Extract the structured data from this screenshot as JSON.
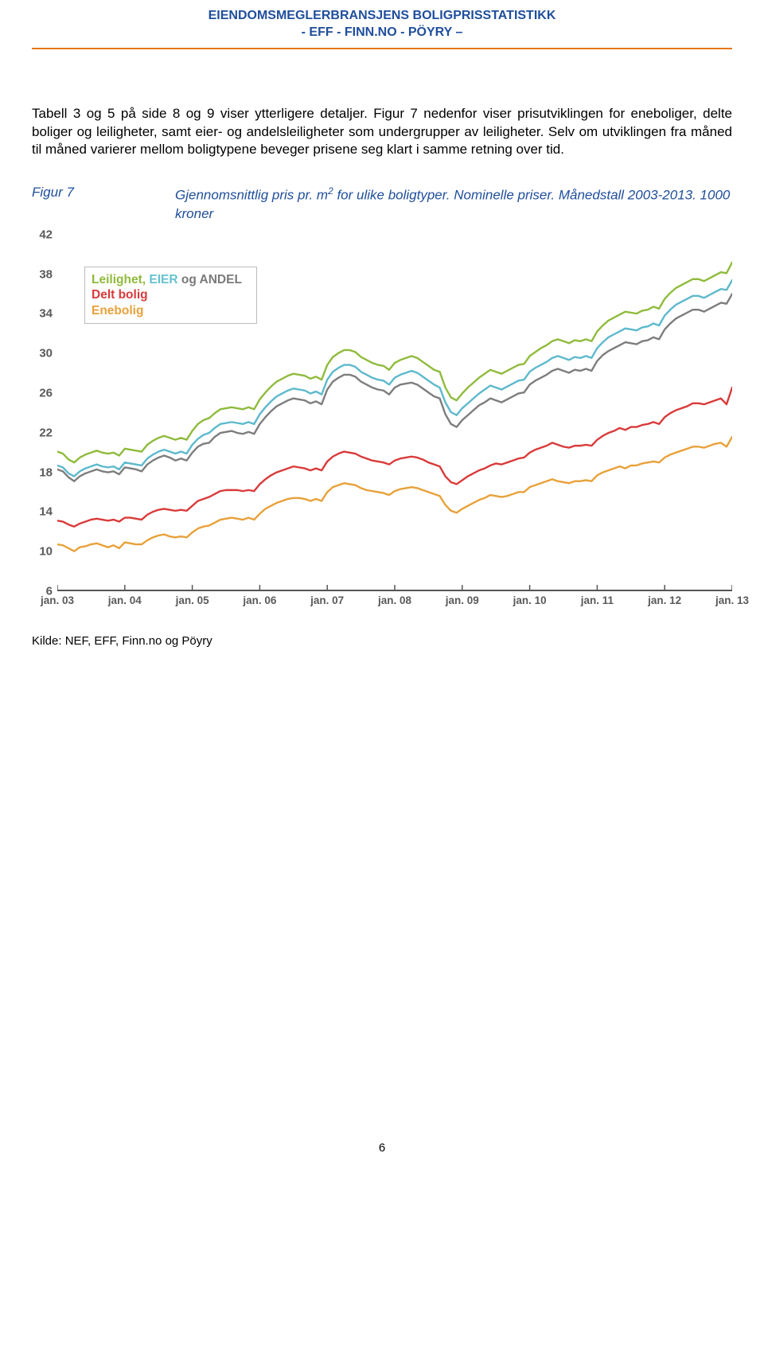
{
  "header": {
    "line1": "EIENDOMSMEGLERBRANSJENS BOLIGPRISSTATISTIKK",
    "line2": "- EFF - FINN.NO - PÖYRY –"
  },
  "paragraph": "Tabell 3 og 5 på side 8 og 9 viser ytterligere detaljer. Figur 7 nedenfor viser prisutviklingen for eneboliger, delte boliger og leiligheter, samt eier- og andelsleiligheter som undergrupper av leiligheter. Selv om utviklingen fra måned til måned varierer mellom boligtypene beveger prisene seg klart i samme retning over tid.",
  "figure": {
    "label": "Figur 7",
    "caption_before_sup": "Gjennomsnittlig pris pr. m",
    "caption_sup": "2",
    "caption_after_sup": " for ulike boligtyper. Nominelle priser. Månedstall 2003-2013. 1000 kroner"
  },
  "legend": {
    "leilighet": "Leilighet,",
    "eier": "EIER",
    "og": "og",
    "andel": "ANDEL",
    "delt": "Delt bolig",
    "enebolig": "Enebolig"
  },
  "chart": {
    "type": "line",
    "ylim": [
      6,
      42
    ],
    "ytick_step": 4,
    "x_categories": [
      "jan. 03",
      "jan. 04",
      "jan. 05",
      "jan. 06",
      "jan. 07",
      "jan. 08",
      "jan. 09",
      "jan. 10",
      "jan. 11",
      "jan. 12",
      "jan. 13"
    ],
    "background_color": "#ffffff",
    "line_width": 2.4,
    "series": {
      "andel": {
        "color": "#7d7d7d",
        "values": [
          18.2,
          18.0,
          17.4,
          17.0,
          17.5,
          17.8,
          18.0,
          18.2,
          18.0,
          17.9,
          18.0,
          17.7,
          18.4,
          18.3,
          18.2,
          18.0,
          18.7,
          19.1,
          19.4,
          19.6,
          19.4,
          19.1,
          19.3,
          19.1,
          19.9,
          20.5,
          20.8,
          20.9,
          21.5,
          21.9,
          22.0,
          22.1,
          21.9,
          21.8,
          22.0,
          21.8,
          22.8,
          23.5,
          24.1,
          24.6,
          24.9,
          25.2,
          25.4,
          25.3,
          25.2,
          24.9,
          25.1,
          24.8,
          26.3,
          27.1,
          27.5,
          27.8,
          27.8,
          27.6,
          27.1,
          26.8,
          26.5,
          26.3,
          26.2,
          25.8,
          26.5,
          26.8,
          26.9,
          27.0,
          26.8,
          26.4,
          26.0,
          25.6,
          25.4,
          23.8,
          22.8,
          22.5,
          23.2,
          23.7,
          24.2,
          24.7,
          25.0,
          25.4,
          25.2,
          25.0,
          25.3,
          25.6,
          25.9,
          26.0,
          26.8,
          27.2,
          27.5,
          27.8,
          28.2,
          28.4,
          28.2,
          28.0,
          28.3,
          28.2,
          28.4,
          28.2,
          29.2,
          29.8,
          30.2,
          30.5,
          30.8,
          31.1,
          31.0,
          30.9,
          31.2,
          31.3,
          31.6,
          31.4,
          32.4,
          33.0,
          33.5,
          33.8,
          34.1,
          34.4,
          34.4,
          34.2,
          34.5,
          34.8,
          35.1,
          35.0,
          36.0
        ]
      },
      "eier": {
        "color": "#5db9cc",
        "values": [
          18.6,
          18.4,
          17.8,
          17.5,
          18.0,
          18.3,
          18.5,
          18.7,
          18.5,
          18.4,
          18.5,
          18.2,
          18.9,
          18.8,
          18.7,
          18.6,
          19.3,
          19.7,
          20.0,
          20.2,
          20.0,
          19.8,
          20.0,
          19.8,
          20.7,
          21.3,
          21.7,
          21.9,
          22.4,
          22.8,
          22.9,
          23.0,
          22.9,
          22.8,
          23.0,
          22.8,
          23.8,
          24.5,
          25.1,
          25.6,
          25.9,
          26.2,
          26.4,
          26.3,
          26.2,
          25.9,
          26.1,
          25.8,
          27.3,
          28.1,
          28.5,
          28.8,
          28.8,
          28.6,
          28.1,
          27.8,
          27.5,
          27.3,
          27.2,
          26.8,
          27.5,
          27.8,
          28.0,
          28.2,
          28.0,
          27.6,
          27.2,
          26.8,
          26.5,
          25.0,
          24.0,
          23.7,
          24.4,
          24.9,
          25.4,
          25.9,
          26.3,
          26.7,
          26.5,
          26.3,
          26.6,
          26.9,
          27.2,
          27.3,
          28.1,
          28.5,
          28.8,
          29.1,
          29.5,
          29.7,
          29.5,
          29.3,
          29.6,
          29.5,
          29.7,
          29.5,
          30.5,
          31.1,
          31.6,
          31.9,
          32.2,
          32.5,
          32.4,
          32.3,
          32.6,
          32.7,
          33.0,
          32.8,
          33.8,
          34.4,
          34.9,
          35.2,
          35.5,
          35.8,
          35.8,
          35.6,
          35.9,
          36.2,
          36.5,
          36.4,
          37.4
        ]
      },
      "leilighet": {
        "color": "#8fbb3c",
        "values": [
          20.0,
          19.8,
          19.2,
          18.9,
          19.4,
          19.7,
          19.9,
          20.1,
          19.9,
          19.8,
          19.9,
          19.6,
          20.3,
          20.2,
          20.1,
          20.0,
          20.7,
          21.1,
          21.4,
          21.6,
          21.4,
          21.2,
          21.4,
          21.2,
          22.1,
          22.8,
          23.2,
          23.4,
          23.9,
          24.3,
          24.4,
          24.5,
          24.4,
          24.3,
          24.5,
          24.3,
          25.3,
          26.0,
          26.6,
          27.1,
          27.4,
          27.7,
          27.9,
          27.8,
          27.7,
          27.4,
          27.6,
          27.3,
          28.8,
          29.6,
          30.0,
          30.3,
          30.3,
          30.1,
          29.6,
          29.3,
          29.0,
          28.8,
          28.7,
          28.3,
          29.0,
          29.3,
          29.5,
          29.7,
          29.5,
          29.1,
          28.7,
          28.3,
          28.1,
          26.5,
          25.5,
          25.2,
          25.9,
          26.5,
          27.0,
          27.5,
          27.9,
          28.3,
          28.1,
          27.9,
          28.2,
          28.5,
          28.8,
          28.9,
          29.7,
          30.1,
          30.5,
          30.8,
          31.2,
          31.4,
          31.2,
          31.0,
          31.3,
          31.2,
          31.4,
          31.2,
          32.2,
          32.8,
          33.3,
          33.6,
          33.9,
          34.2,
          34.1,
          34.0,
          34.3,
          34.4,
          34.7,
          34.5,
          35.5,
          36.1,
          36.6,
          36.9,
          37.2,
          37.5,
          37.5,
          37.3,
          37.6,
          37.9,
          38.2,
          38.1,
          39.2
        ]
      },
      "delt": {
        "color": "#d93a3a",
        "values": [
          13.0,
          12.9,
          12.6,
          12.4,
          12.7,
          12.9,
          13.1,
          13.2,
          13.1,
          13.0,
          13.1,
          12.9,
          13.3,
          13.3,
          13.2,
          13.1,
          13.6,
          13.9,
          14.1,
          14.2,
          14.1,
          14.0,
          14.1,
          14.0,
          14.5,
          15.0,
          15.2,
          15.4,
          15.7,
          16.0,
          16.1,
          16.1,
          16.1,
          16.0,
          16.1,
          16.0,
          16.7,
          17.2,
          17.6,
          17.9,
          18.1,
          18.3,
          18.5,
          18.4,
          18.3,
          18.1,
          18.3,
          18.1,
          19.0,
          19.5,
          19.8,
          20.0,
          19.9,
          19.8,
          19.5,
          19.3,
          19.1,
          19.0,
          18.9,
          18.7,
          19.1,
          19.3,
          19.4,
          19.5,
          19.4,
          19.2,
          18.9,
          18.7,
          18.5,
          17.5,
          16.9,
          16.7,
          17.1,
          17.5,
          17.8,
          18.1,
          18.3,
          18.6,
          18.8,
          18.7,
          18.9,
          19.1,
          19.3,
          19.4,
          19.9,
          20.2,
          20.4,
          20.6,
          20.9,
          20.7,
          20.5,
          20.4,
          20.6,
          20.6,
          20.7,
          20.6,
          21.2,
          21.6,
          21.9,
          22.1,
          22.4,
          22.2,
          22.5,
          22.5,
          22.7,
          22.8,
          23.0,
          22.8,
          23.5,
          23.9,
          24.2,
          24.4,
          24.6,
          24.9,
          24.9,
          24.8,
          25.0,
          25.2,
          25.4,
          24.8,
          26.5
        ]
      },
      "enebolig": {
        "color": "#e8a13a",
        "values": [
          10.6,
          10.5,
          10.2,
          9.9,
          10.3,
          10.4,
          10.6,
          10.7,
          10.5,
          10.3,
          10.5,
          10.2,
          10.8,
          10.7,
          10.6,
          10.6,
          11.0,
          11.3,
          11.5,
          11.6,
          11.4,
          11.3,
          11.4,
          11.3,
          11.8,
          12.2,
          12.4,
          12.5,
          12.8,
          13.1,
          13.2,
          13.3,
          13.2,
          13.1,
          13.3,
          13.1,
          13.7,
          14.2,
          14.5,
          14.8,
          15.0,
          15.2,
          15.3,
          15.3,
          15.2,
          15.0,
          15.2,
          15.0,
          15.9,
          16.4,
          16.6,
          16.8,
          16.7,
          16.6,
          16.3,
          16.1,
          16.0,
          15.9,
          15.8,
          15.6,
          16.0,
          16.2,
          16.3,
          16.4,
          16.3,
          16.1,
          15.9,
          15.7,
          15.5,
          14.6,
          14.0,
          13.8,
          14.2,
          14.5,
          14.8,
          15.1,
          15.3,
          15.6,
          15.5,
          15.4,
          15.5,
          15.7,
          15.9,
          15.9,
          16.4,
          16.6,
          16.8,
          17.0,
          17.2,
          17.0,
          16.9,
          16.8,
          17.0,
          17.0,
          17.1,
          17.0,
          17.6,
          17.9,
          18.1,
          18.3,
          18.5,
          18.3,
          18.6,
          18.6,
          18.8,
          18.9,
          19.0,
          18.9,
          19.4,
          19.7,
          19.9,
          20.1,
          20.3,
          20.5,
          20.5,
          20.4,
          20.6,
          20.8,
          20.9,
          20.5,
          21.5
        ]
      }
    }
  },
  "source": "Kilde:  NEF, EFF, Finn.no og Pöyry",
  "page_number": "6"
}
